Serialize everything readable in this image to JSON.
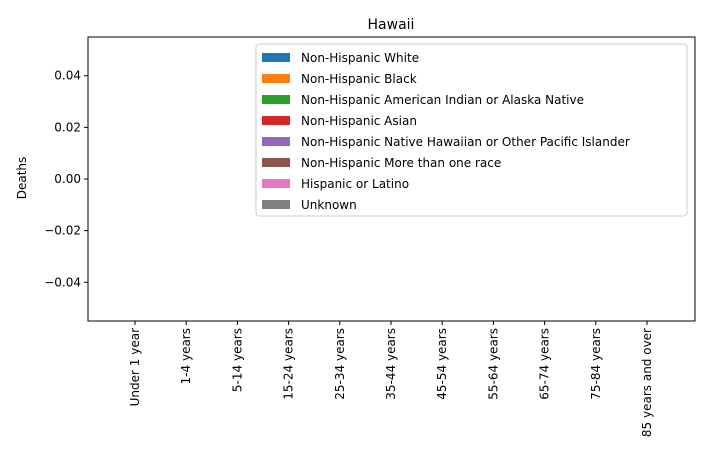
{
  "chart_data": {
    "type": "bar",
    "title": "Hawaii",
    "xlabel": "",
    "ylabel": "Deaths",
    "categories": [
      "Under 1 year",
      "1-4 years",
      "5-14 years",
      "15-24 years",
      "25-34 years",
      "35-44 years",
      "45-54 years",
      "55-64 years",
      "65-74 years",
      "75-84 years",
      "85 years and over"
    ],
    "series": [
      {
        "name": "Non-Hispanic White",
        "color": "#1f77b4",
        "values": [
          0,
          0,
          0,
          0,
          0,
          0,
          0,
          0,
          0,
          0,
          0
        ]
      },
      {
        "name": "Non-Hispanic Black",
        "color": "#ff7f0e",
        "values": [
          0,
          0,
          0,
          0,
          0,
          0,
          0,
          0,
          0,
          0,
          0
        ]
      },
      {
        "name": "Non-Hispanic American Indian or Alaska Native",
        "color": "#2ca02c",
        "values": [
          0,
          0,
          0,
          0,
          0,
          0,
          0,
          0,
          0,
          0,
          0
        ]
      },
      {
        "name": "Non-Hispanic Asian",
        "color": "#d62728",
        "values": [
          0,
          0,
          0,
          0,
          0,
          0,
          0,
          0,
          0,
          0,
          0
        ]
      },
      {
        "name": "Non-Hispanic Native Hawaiian or Other Pacific Islander",
        "color": "#9467bd",
        "values": [
          0,
          0,
          0,
          0,
          0,
          0,
          0,
          0,
          0,
          0,
          0
        ]
      },
      {
        "name": "Non-Hispanic More than one race",
        "color": "#8c564b",
        "values": [
          0,
          0,
          0,
          0,
          0,
          0,
          0,
          0,
          0,
          0,
          0
        ]
      },
      {
        "name": "Hispanic or Latino",
        "color": "#e377c2",
        "values": [
          0,
          0,
          0,
          0,
          0,
          0,
          0,
          0,
          0,
          0,
          0
        ]
      },
      {
        "name": "Unknown",
        "color": "#7f7f7f",
        "values": [
          0,
          0,
          0,
          0,
          0,
          0,
          0,
          0,
          0,
          0,
          0
        ]
      }
    ],
    "ylim": [
      -0.055,
      0.055
    ],
    "yticks": [
      -0.04,
      -0.02,
      0.0,
      0.02,
      0.04
    ],
    "ytick_labels": [
      "−0.04",
      "−0.02",
      "0.00",
      "0.02",
      "0.04"
    ],
    "grid": false,
    "legend_position": "top-right"
  }
}
